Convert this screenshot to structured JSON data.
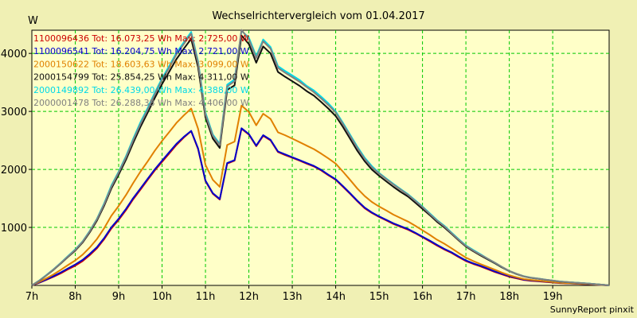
{
  "chart_data": {
    "type": "line",
    "title": "Wechselrichtervergleich vom 01.04.2017",
    "ylabel": "W",
    "xlabel": "",
    "ylim": [
      0,
      4400
    ],
    "xlim": [
      7,
      20.3
    ],
    "yticks": [
      1000,
      2000,
      3000,
      4000
    ],
    "xticks": [
      {
        "value": 7,
        "label": "7h"
      },
      {
        "value": 8,
        "label": "8h"
      },
      {
        "value": 9,
        "label": "9h"
      },
      {
        "value": 10,
        "label": "10h"
      },
      {
        "value": 11,
        "label": "11h"
      },
      {
        "value": 12,
        "label": "12h"
      },
      {
        "value": 13,
        "label": "13h"
      },
      {
        "value": 14,
        "label": "14h"
      },
      {
        "value": 15,
        "label": "15h"
      },
      {
        "value": 16,
        "label": "16h"
      },
      {
        "value": 17,
        "label": "17h"
      },
      {
        "value": 18,
        "label": "18h"
      },
      {
        "value": 19,
        "label": "19h"
      }
    ],
    "grid": true,
    "legend_position": "top-left",
    "x": [
      7.0,
      7.17,
      7.33,
      7.5,
      7.67,
      7.83,
      8.0,
      8.17,
      8.33,
      8.5,
      8.67,
      8.83,
      9.0,
      9.17,
      9.33,
      9.5,
      9.67,
      9.83,
      10.0,
      10.17,
      10.33,
      10.5,
      10.67,
      10.83,
      11.0,
      11.17,
      11.33,
      11.5,
      11.67,
      11.83,
      12.0,
      12.17,
      12.33,
      12.5,
      12.67,
      12.83,
      13.0,
      13.17,
      13.33,
      13.5,
      13.67,
      13.83,
      14.0,
      14.17,
      14.33,
      14.5,
      14.67,
      14.83,
      15.0,
      15.17,
      15.33,
      15.5,
      15.67,
      15.83,
      16.0,
      16.17,
      16.33,
      16.5,
      16.67,
      16.83,
      17.0,
      17.17,
      17.33,
      17.5,
      17.67,
      17.83,
      18.0,
      18.17,
      18.33,
      18.5,
      18.67,
      18.83,
      19.0,
      19.17,
      19.33,
      19.5,
      19.67,
      19.83,
      20.0,
      20.17,
      20.3
    ],
    "series": [
      {
        "name": "1100096436",
        "label": "1100096436 Tot: 16.073,25 Wh Max: 2.725,00 W",
        "color": "#cc0000",
        "values": [
          0,
          45,
          95,
          150,
          210,
          275,
          340,
          420,
          520,
          640,
          800,
          980,
          1130,
          1300,
          1480,
          1650,
          1820,
          1980,
          2130,
          2280,
          2420,
          2550,
          2660,
          2350,
          1800,
          1580,
          1480,
          2100,
          2150,
          2700,
          2600,
          2400,
          2580,
          2500,
          2300,
          2250,
          2200,
          2150,
          2100,
          2050,
          1980,
          1900,
          1820,
          1700,
          1580,
          1450,
          1330,
          1250,
          1180,
          1120,
          1060,
          1010,
          960,
          900,
          830,
          760,
          690,
          620,
          560,
          490,
          420,
          370,
          330,
          280,
          230,
          190,
          150,
          120,
          95,
          80,
          70,
          60,
          50,
          40,
          35,
          30,
          25,
          20,
          12,
          6,
          0
        ]
      },
      {
        "name": "1100096541",
        "label": "1100096541 Tot: 16.204,75 Wh Max: 2.721,00 W",
        "color": "#0000cc",
        "values": [
          0,
          50,
          100,
          160,
          225,
          290,
          360,
          440,
          540,
          660,
          820,
          1000,
          1150,
          1320,
          1500,
          1670,
          1840,
          2000,
          2150,
          2300,
          2440,
          2560,
          2665,
          2360,
          1810,
          1590,
          1490,
          2110,
          2160,
          2710,
          2610,
          2410,
          2590,
          2510,
          2310,
          2260,
          2210,
          2160,
          2110,
          2060,
          1990,
          1910,
          1830,
          1710,
          1590,
          1460,
          1340,
          1260,
          1190,
          1130,
          1070,
          1020,
          970,
          910,
          840,
          770,
          700,
          630,
          570,
          500,
          430,
          380,
          340,
          290,
          240,
          200,
          160,
          130,
          100,
          85,
          75,
          65,
          55,
          45,
          38,
          32,
          27,
          22,
          13,
          7,
          0
        ]
      },
      {
        "name": "2000150622",
        "label": "2000150622 Tot: 18.603,63 Wh Max: 3.099,00 W",
        "color": "#e08000",
        "values": [
          0,
          60,
          120,
          190,
          270,
          350,
          430,
          530,
          650,
          800,
          990,
          1200,
          1370,
          1560,
          1760,
          1960,
          2140,
          2320,
          2490,
          2650,
          2800,
          2930,
          3050,
          2700,
          2080,
          1820,
          1700,
          2420,
          2480,
          3100,
          2990,
          2760,
          2960,
          2870,
          2640,
          2590,
          2530,
          2470,
          2410,
          2350,
          2270,
          2190,
          2100,
          1960,
          1820,
          1670,
          1540,
          1440,
          1360,
          1290,
          1220,
          1160,
          1100,
          1030,
          950,
          870,
          790,
          720,
          640,
          560,
          480,
          420,
          370,
          320,
          270,
          220,
          175,
          140,
          110,
          95,
          82,
          70,
          58,
          47,
          40,
          34,
          29,
          23,
          14,
          7,
          0
        ]
      },
      {
        "name": "2000154799",
        "label": "2000154799 Tot: 25.854,25 Wh Max: 4.311,00 W",
        "color": "#101010",
        "values": [
          0,
          80,
          170,
          270,
          380,
          490,
          600,
          740,
          910,
          1120,
          1380,
          1670,
          1910,
          2170,
          2450,
          2730,
          2980,
          3230,
          3470,
          3690,
          3900,
          4080,
          4250,
          3760,
          2900,
          2530,
          2370,
          3370,
          3450,
          4310,
          4160,
          3840,
          4120,
          4000,
          3680,
          3600,
          3520,
          3440,
          3350,
          3270,
          3160,
          3050,
          2920,
          2730,
          2530,
          2320,
          2140,
          2000,
          1890,
          1790,
          1700,
          1610,
          1530,
          1430,
          1320,
          1210,
          1100,
          1000,
          890,
          780,
          670,
          590,
          520,
          450,
          380,
          310,
          245,
          195,
          155,
          130,
          115,
          98,
          82,
          66,
          56,
          48,
          40,
          32,
          20,
          10,
          0
        ]
      },
      {
        "name": "2000149892",
        "label": "2000149892 Tot: 26.439,00 Wh Max: 4.388,00 W",
        "color": "#00d8e8",
        "values": [
          0,
          85,
          175,
          280,
          390,
          505,
          620,
          760,
          935,
          1150,
          1420,
          1720,
          1960,
          2230,
          2520,
          2810,
          3060,
          3320,
          3570,
          3790,
          4010,
          4190,
          4370,
          3860,
          2980,
          2600,
          2440,
          3460,
          3550,
          4390,
          4270,
          3950,
          4240,
          4110,
          3780,
          3700,
          3620,
          3540,
          3440,
          3360,
          3250,
          3140,
          3000,
          2800,
          2600,
          2390,
          2200,
          2060,
          1940,
          1840,
          1750,
          1660,
          1570,
          1470,
          1360,
          1240,
          1130,
          1030,
          910,
          800,
          690,
          610,
          540,
          460,
          390,
          320,
          250,
          200,
          160,
          135,
          118,
          100,
          84,
          68,
          58,
          49,
          41,
          33,
          21,
          10,
          0
        ]
      },
      {
        "name": "2000001478",
        "label": "2000001478 Tot: 26.288,38 Wh Max: 4.406,00 W",
        "color": "#808080",
        "values": [
          0,
          82,
          172,
          275,
          385,
          498,
          612,
          752,
          926,
          1140,
          1405,
          1700,
          1945,
          2210,
          2495,
          2780,
          3030,
          3290,
          3540,
          3760,
          3980,
          4160,
          4340,
          3830,
          2950,
          2580,
          2420,
          3430,
          3520,
          4406,
          4240,
          3920,
          4210,
          4080,
          3750,
          3670,
          3590,
          3510,
          3420,
          3330,
          3220,
          3110,
          2980,
          2780,
          2580,
          2370,
          2180,
          2040,
          1930,
          1830,
          1740,
          1650,
          1560,
          1460,
          1350,
          1230,
          1120,
          1020,
          900,
          790,
          680,
          600,
          530,
          460,
          390,
          320,
          250,
          200,
          158,
          133,
          117,
          99,
          83,
          67,
          57,
          48,
          40,
          32,
          20,
          10,
          0
        ]
      }
    ]
  },
  "footer": {
    "credit": "SunnyReport pinxit"
  }
}
